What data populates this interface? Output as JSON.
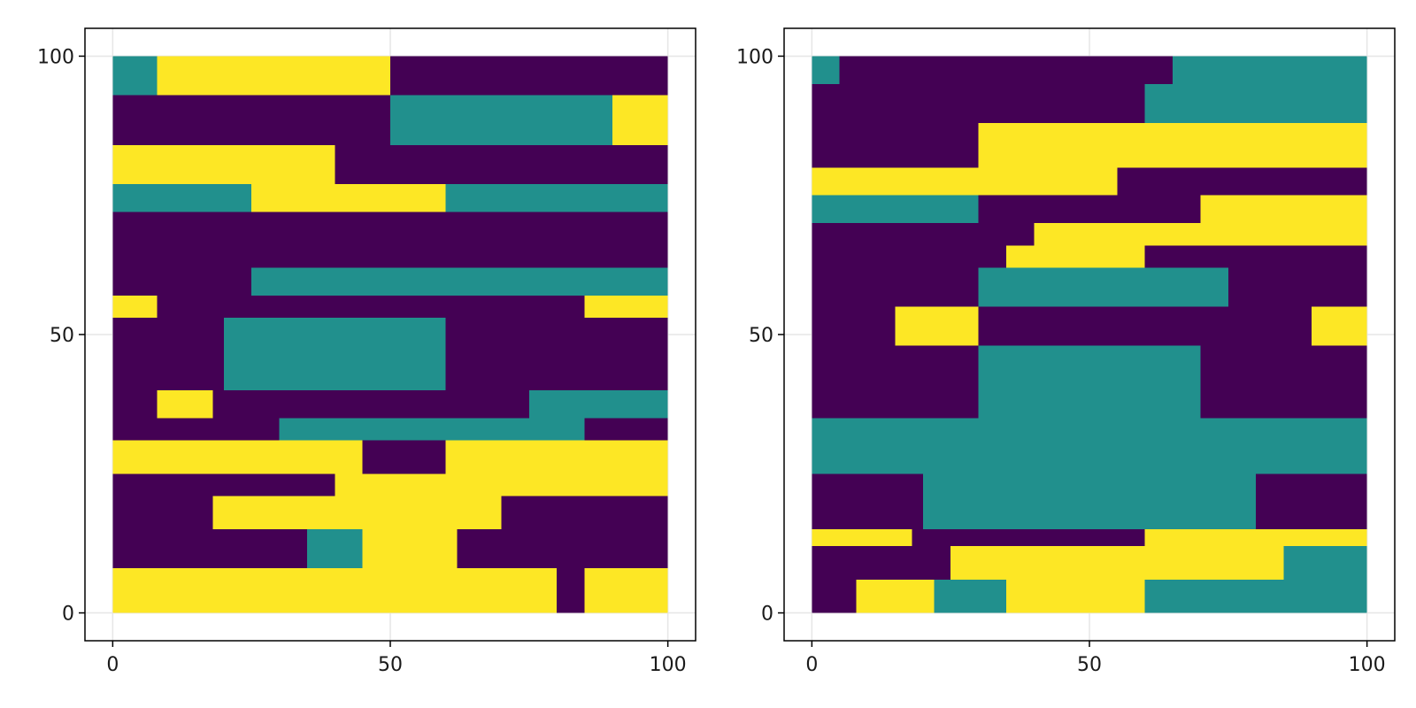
{
  "chart_data": [
    {
      "type": "heatmap",
      "title": "",
      "xlabel": "",
      "ylabel": "",
      "xlim": [
        -5,
        105
      ],
      "ylim": [
        -5,
        105
      ],
      "grid": true,
      "x_ticks": [
        0,
        50,
        100
      ],
      "y_ticks": [
        0,
        50,
        100
      ],
      "x_tick_labels": [
        "0",
        "50",
        "100"
      ],
      "y_tick_labels": [
        "0",
        "50",
        "100"
      ],
      "categories": [
        1,
        2,
        3
      ],
      "category_colors": {
        "1": "#440154",
        "2": "#21908d",
        "3": "#fde725"
      },
      "rows": [
        {
          "y": [
            0,
            8
          ],
          "segments": [
            [
              0,
              80,
              3
            ],
            [
              80,
              85,
              1
            ],
            [
              85,
              100,
              3
            ]
          ]
        },
        {
          "y": [
            8,
            15
          ],
          "segments": [
            [
              0,
              35,
              1
            ],
            [
              35,
              45,
              2
            ],
            [
              45,
              62,
              3
            ],
            [
              62,
              100,
              1
            ]
          ]
        },
        {
          "y": [
            15,
            21
          ],
          "segments": [
            [
              0,
              18,
              1
            ],
            [
              18,
              70,
              3
            ],
            [
              70,
              100,
              1
            ]
          ]
        },
        {
          "y": [
            21,
            25
          ],
          "segments": [
            [
              0,
              40,
              1
            ],
            [
              40,
              100,
              3
            ]
          ]
        },
        {
          "y": [
            25,
            31
          ],
          "segments": [
            [
              0,
              45,
              3
            ],
            [
              45,
              60,
              1
            ],
            [
              60,
              100,
              3
            ]
          ]
        },
        {
          "y": [
            31,
            35
          ],
          "segments": [
            [
              0,
              30,
              1
            ],
            [
              30,
              85,
              2
            ],
            [
              85,
              100,
              1
            ]
          ]
        },
        {
          "y": [
            35,
            40
          ],
          "segments": [
            [
              0,
              8,
              1
            ],
            [
              8,
              18,
              3
            ],
            [
              18,
              75,
              1
            ],
            [
              75,
              100,
              2
            ]
          ]
        },
        {
          "y": [
            40,
            53
          ],
          "segments": [
            [
              0,
              20,
              1
            ],
            [
              20,
              60,
              2
            ],
            [
              60,
              100,
              1
            ]
          ]
        },
        {
          "y": [
            53,
            57
          ],
          "segments": [
            [
              0,
              8,
              3
            ],
            [
              8,
              85,
              1
            ],
            [
              85,
              100,
              3
            ]
          ]
        },
        {
          "y": [
            57,
            62
          ],
          "segments": [
            [
              0,
              25,
              1
            ],
            [
              25,
              100,
              2
            ]
          ]
        },
        {
          "y": [
            62,
            72
          ],
          "segments": [
            [
              0,
              100,
              1
            ]
          ]
        },
        {
          "y": [
            72,
            77
          ],
          "segments": [
            [
              0,
              25,
              2
            ],
            [
              25,
              60,
              3
            ],
            [
              60,
              100,
              2
            ]
          ]
        },
        {
          "y": [
            77,
            84
          ],
          "segments": [
            [
              0,
              40,
              3
            ],
            [
              40,
              100,
              1
            ]
          ]
        },
        {
          "y": [
            84,
            93
          ],
          "segments": [
            [
              0,
              50,
              1
            ],
            [
              50,
              90,
              2
            ],
            [
              90,
              100,
              3
            ]
          ]
        },
        {
          "y": [
            93,
            100
          ],
          "segments": [
            [
              0,
              8,
              2
            ],
            [
              8,
              50,
              3
            ],
            [
              50,
              100,
              1
            ]
          ]
        }
      ]
    },
    {
      "type": "heatmap",
      "title": "",
      "xlabel": "",
      "ylabel": "",
      "xlim": [
        -5,
        105
      ],
      "ylim": [
        -5,
        105
      ],
      "grid": true,
      "x_ticks": [
        0,
        50,
        100
      ],
      "y_ticks": [
        0,
        50,
        100
      ],
      "x_tick_labels": [
        "0",
        "50",
        "100"
      ],
      "y_tick_labels": [
        "0",
        "50",
        "100"
      ],
      "categories": [
        1,
        2,
        3
      ],
      "category_colors": {
        "1": "#440154",
        "2": "#21908d",
        "3": "#fde725"
      },
      "rows": [
        {
          "y": [
            0,
            6
          ],
          "segments": [
            [
              0,
              8,
              1
            ],
            [
              8,
              22,
              3
            ],
            [
              22,
              35,
              2
            ],
            [
              35,
              60,
              3
            ],
            [
              60,
              100,
              2
            ]
          ]
        },
        {
          "y": [
            6,
            12
          ],
          "segments": [
            [
              0,
              25,
              1
            ],
            [
              25,
              85,
              3
            ],
            [
              85,
              100,
              2
            ]
          ]
        },
        {
          "y": [
            12,
            15
          ],
          "segments": [
            [
              0,
              18,
              3
            ],
            [
              18,
              60,
              1
            ],
            [
              60,
              100,
              3
            ]
          ]
        },
        {
          "y": [
            15,
            25
          ],
          "segments": [
            [
              0,
              20,
              1
            ],
            [
              20,
              80,
              2
            ],
            [
              80,
              100,
              1
            ]
          ]
        },
        {
          "y": [
            25,
            35
          ],
          "segments": [
            [
              0,
              100,
              2
            ]
          ]
        },
        {
          "y": [
            35,
            48
          ],
          "segments": [
            [
              0,
              30,
              1
            ],
            [
              30,
              70,
              2
            ],
            [
              70,
              100,
              1
            ]
          ]
        },
        {
          "y": [
            48,
            55
          ],
          "segments": [
            [
              0,
              15,
              1
            ],
            [
              15,
              30,
              3
            ],
            [
              30,
              90,
              1
            ],
            [
              90,
              100,
              3
            ]
          ]
        },
        {
          "y": [
            55,
            62
          ],
          "segments": [
            [
              0,
              30,
              1
            ],
            [
              30,
              75,
              2
            ],
            [
              75,
              100,
              1
            ]
          ]
        },
        {
          "y": [
            62,
            66
          ],
          "segments": [
            [
              0,
              35,
              1
            ],
            [
              35,
              60,
              3
            ],
            [
              60,
              100,
              1
            ]
          ]
        },
        {
          "y": [
            66,
            70
          ],
          "segments": [
            [
              0,
              40,
              1
            ],
            [
              40,
              100,
              3
            ]
          ]
        },
        {
          "y": [
            70,
            75
          ],
          "segments": [
            [
              0,
              30,
              2
            ],
            [
              30,
              70,
              1
            ],
            [
              70,
              100,
              3
            ]
          ]
        },
        {
          "y": [
            75,
            80
          ],
          "segments": [
            [
              0,
              55,
              3
            ],
            [
              55,
              100,
              1
            ]
          ]
        },
        {
          "y": [
            80,
            88
          ],
          "segments": [
            [
              0,
              30,
              1
            ],
            [
              30,
              100,
              3
            ]
          ]
        },
        {
          "y": [
            88,
            95
          ],
          "segments": [
            [
              0,
              60,
              1
            ],
            [
              60,
              100,
              2
            ]
          ]
        },
        {
          "y": [
            95,
            100
          ],
          "segments": [
            [
              0,
              5,
              2
            ],
            [
              5,
              65,
              1
            ],
            [
              65,
              100,
              2
            ]
          ]
        }
      ]
    }
  ]
}
